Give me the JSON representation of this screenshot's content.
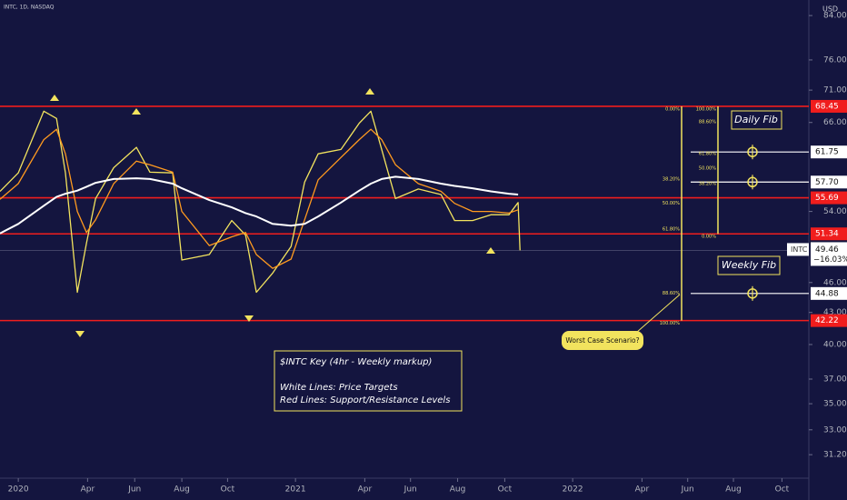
{
  "chart_data": {
    "type": "line",
    "symbol_header": "INTC, 1D, NASDAQ",
    "currency": "USD",
    "log_scale": true,
    "x": [
      2019.934,
      2020.0,
      2020.092,
      2020.138,
      2020.17,
      2020.213,
      2020.246,
      2020.279,
      2020.344,
      2020.426,
      2020.475,
      2020.557,
      2020.59,
      2020.689,
      2020.77,
      2020.82,
      2020.859,
      2020.918,
      2020.984,
      2021.033,
      2021.082,
      2021.164,
      2021.23,
      2021.272,
      2021.311,
      2021.361,
      2021.443,
      2021.525,
      2021.574,
      2021.639,
      2021.705,
      2021.77,
      2021.803,
      2021.81
    ],
    "series": [
      {
        "name": "INTC",
        "color": "#f2e35e",
        "values": [
          56.5,
          58.9,
          67.7,
          66.6,
          58.9,
          45.0,
          50.3,
          55.6,
          59.6,
          62.4,
          59.0,
          58.9,
          48.4,
          49.0,
          52.9,
          51.2,
          45.0,
          47.0,
          49.9,
          57.7,
          61.5,
          62.1,
          65.9,
          67.7,
          62.1,
          55.6,
          56.8,
          56.1,
          52.9,
          52.9,
          53.6,
          53.6,
          55.1,
          49.46
        ]
      },
      {
        "color": "#ff9a1f",
        "values": [
          55.5,
          57.5,
          63.5,
          65.0,
          61.5,
          54.0,
          51.5,
          53.0,
          57.5,
          60.5,
          60.0,
          59.0,
          54.0,
          50.0,
          51.0,
          51.5,
          49.0,
          47.5,
          48.5,
          53.0,
          58.0,
          61.0,
          63.5,
          65.0,
          63.5,
          60.0,
          57.5,
          56.5,
          55.0,
          54.0,
          54.0,
          53.8,
          54.2,
          null
        ]
      },
      {
        "color": "#ffffff",
        "values": [
          51.4,
          52.5,
          54.7,
          55.8,
          56.2,
          56.6,
          57.1,
          57.6,
          58.1,
          58.2,
          58.1,
          57.5,
          56.9,
          55.4,
          54.5,
          53.8,
          53.4,
          52.5,
          52.3,
          52.5,
          53.4,
          55.1,
          56.6,
          57.5,
          58.1,
          58.4,
          58.1,
          57.5,
          57.2,
          56.9,
          56.5,
          56.2,
          56.1,
          null
        ]
      }
    ],
    "price_change": {
      "value": -16.03,
      "label": "−16.03%"
    },
    "xlim": [
      2019.934,
      2022.852
    ],
    "xticks": [
      2020,
      {
        "value": 2020.25,
        "label": "Apr"
      },
      {
        "value": 2020.42,
        "label": "Jun"
      },
      {
        "value": 2020.59,
        "label": "Aug"
      },
      {
        "value": 2020.755,
        "label": "Oct"
      },
      2021,
      {
        "value": 2021.25,
        "label": "Apr"
      },
      {
        "value": 2021.415,
        "label": "Jun"
      },
      {
        "value": 2021.585,
        "label": "Aug"
      },
      {
        "value": 2021.755,
        "label": "Oct"
      },
      2022,
      {
        "value": 2022.25,
        "label": "Apr"
      },
      {
        "value": 2022.415,
        "label": "Jun"
      },
      {
        "value": 2022.58,
        "label": "Aug"
      },
      {
        "value": 2022.755,
        "label": "Oct"
      }
    ],
    "ylim": [
      29.65,
      87
    ],
    "yticks": [
      {
        "value": 84,
        "label": "84.00"
      },
      {
        "value": 76,
        "label": "76.00"
      },
      {
        "value": 71,
        "label": "71.00"
      },
      {
        "value": 66,
        "label": "66.00"
      },
      {
        "value": 54,
        "label": "54.00"
      },
      {
        "value": 46,
        "label": "46.00"
      },
      {
        "value": 43,
        "label": "43.00"
      },
      {
        "value": 40,
        "label": "40.00"
      },
      {
        "value": 37,
        "label": "37.00"
      },
      {
        "value": 35,
        "label": "35.00"
      },
      {
        "value": 33,
        "label": "33.00"
      },
      {
        "value": 31.2,
        "label": "31.20"
      }
    ],
    "support_resistance": {
      "color": "#f01d1d",
      "levels": [
        68.45,
        55.69,
        51.34,
        42.22
      ]
    },
    "price_targets": {
      "color": "#ffffff",
      "levels": [
        61.75,
        {
          "value": 57.7,
          "label": "57.70"
        },
        44.88
      ]
    },
    "daily_fib": {
      "title": "Daily Fib",
      "levels": [
        {
          "value": 100,
          "label": "100.00%"
        },
        {
          "value": 88.6,
          "label": "88.60%"
        },
        {
          "value": 61.8,
          "label": "61.80%"
        },
        {
          "value": 50,
          "label": "50.00%"
        },
        {
          "value": 38.2,
          "label": "38.20%"
        },
        {
          "value": 0,
          "label": "0.00%"
        }
      ]
    },
    "weekly_fib": {
      "title": "Weekly Fib",
      "levels": [
        {
          "value": 0,
          "label": "0.00%"
        },
        {
          "value": 38.2,
          "label": "38.20%"
        },
        {
          "value": 50,
          "label": "50.00%"
        },
        {
          "value": 61.8,
          "label": "61.80%"
        },
        {
          "value": 88.6,
          "label": "88.60%"
        },
        {
          "value": 100,
          "label": "100.00%"
        }
      ]
    },
    "callout": "Worst Case Scenario?",
    "key_box": [
      "$INTC Key (4hr - Weekly markup)",
      "White Lines: Price Targets",
      "Red Lines: Support/Resistance Levels"
    ]
  }
}
